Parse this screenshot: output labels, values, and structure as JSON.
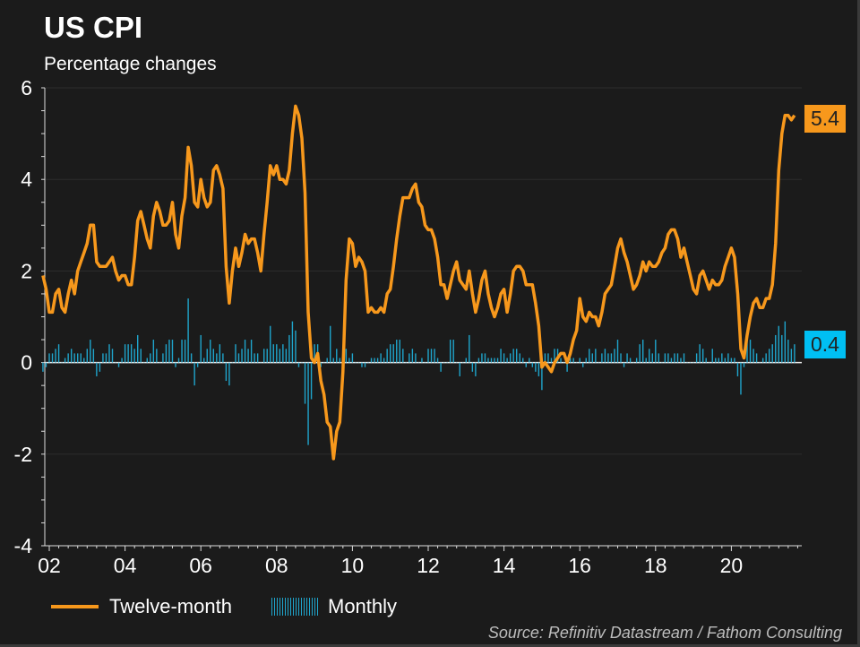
{
  "title": "US CPI",
  "subtitle": "Percentage changes",
  "source": "Source: Refinitiv Datastream / Fathom Consulting",
  "colors": {
    "twelve_month": "#f7981c",
    "monthly": "#1fa5cc",
    "monthly_badge": "#00bff3",
    "background": "#1b1b1b"
  },
  "chart_data": {
    "type": "line+bar",
    "title": "US CPI",
    "subtitle": "Percentage changes",
    "xlabel": "",
    "ylabel": "",
    "ylim": [
      -4,
      6
    ],
    "yticks": [
      "6",
      "4",
      "2",
      "0",
      "-2",
      "-4"
    ],
    "xticks": [
      "02",
      "04",
      "06",
      "08",
      "10",
      "12",
      "14",
      "16",
      "18",
      "20"
    ],
    "grid": true,
    "legend_position": "bottom",
    "start_month": "2001-11",
    "end_month": "2021-09",
    "series": [
      {
        "name": "Twelve-month",
        "type": "line",
        "last_label": "5.4",
        "values": [
          1.9,
          1.6,
          1.1,
          1.1,
          1.5,
          1.6,
          1.2,
          1.1,
          1.5,
          1.8,
          1.5,
          2.0,
          2.2,
          2.4,
          2.6,
          3.0,
          3.0,
          2.2,
          2.1,
          2.1,
          2.1,
          2.2,
          2.3,
          2.0,
          1.8,
          1.9,
          1.9,
          1.7,
          1.7,
          2.3,
          3.1,
          3.3,
          3.0,
          2.7,
          2.5,
          3.2,
          3.5,
          3.3,
          3.0,
          3.0,
          3.1,
          3.5,
          2.8,
          2.5,
          3.2,
          3.6,
          4.7,
          4.3,
          3.5,
          3.4,
          4.0,
          3.6,
          3.4,
          3.5,
          4.2,
          4.3,
          4.1,
          3.8,
          2.1,
          1.3,
          2.0,
          2.5,
          2.1,
          2.4,
          2.8,
          2.6,
          2.7,
          2.7,
          2.4,
          2.0,
          2.8,
          3.5,
          4.3,
          4.1,
          4.3,
          4.0,
          4.0,
          3.9,
          4.2,
          5.0,
          5.6,
          5.4,
          4.9,
          3.7,
          1.1,
          0.1,
          0.0,
          0.2,
          -0.4,
          -0.7,
          -1.3,
          -1.4,
          -2.1,
          -1.5,
          -1.3,
          -0.2,
          1.8,
          2.7,
          2.6,
          2.1,
          2.3,
          2.2,
          2.0,
          1.1,
          1.2,
          1.1,
          1.1,
          1.2,
          1.1,
          1.5,
          1.6,
          2.1,
          2.7,
          3.2,
          3.6,
          3.6,
          3.6,
          3.8,
          3.9,
          3.5,
          3.4,
          3.0,
          2.9,
          2.9,
          2.7,
          2.3,
          1.7,
          1.7,
          1.4,
          1.7,
          2.0,
          2.2,
          1.8,
          1.7,
          1.6,
          2.0,
          1.5,
          1.1,
          1.4,
          1.8,
          2.0,
          1.5,
          1.2,
          1.0,
          1.2,
          1.5,
          1.6,
          1.1,
          1.5,
          2.0,
          2.1,
          2.1,
          2.0,
          1.7,
          1.7,
          1.7,
          1.3,
          0.8,
          -0.1,
          0.0,
          -0.1,
          -0.2,
          0.0,
          0.1,
          0.2,
          0.2,
          0.0,
          0.2,
          0.5,
          0.7,
          1.4,
          1.0,
          0.9,
          1.1,
          1.0,
          1.0,
          0.8,
          1.1,
          1.5,
          1.6,
          1.7,
          2.1,
          2.5,
          2.7,
          2.4,
          2.2,
          1.9,
          1.6,
          1.7,
          1.9,
          2.2,
          2.0,
          2.2,
          2.1,
          2.1,
          2.2,
          2.4,
          2.5,
          2.8,
          2.9,
          2.9,
          2.7,
          2.3,
          2.5,
          2.2,
          1.9,
          1.6,
          1.5,
          1.9,
          2.0,
          1.8,
          1.6,
          1.8,
          1.7,
          1.7,
          1.8,
          2.1,
          2.3,
          2.5,
          2.3,
          1.5,
          0.3,
          0.1,
          0.6,
          1.0,
          1.3,
          1.4,
          1.2,
          1.2,
          1.4,
          1.4,
          1.7,
          2.6,
          4.2,
          5.0,
          5.4,
          5.4,
          5.3,
          5.4
        ]
      },
      {
        "name": "Monthly",
        "type": "bar",
        "last_label": "0.4",
        "values": [
          -0.2,
          -0.1,
          0.2,
          0.2,
          0.3,
          0.4,
          0.0,
          0.1,
          0.2,
          0.3,
          0.2,
          0.2,
          0.2,
          0.1,
          0.3,
          0.5,
          0.3,
          -0.3,
          -0.2,
          0.2,
          0.2,
          0.4,
          0.3,
          0.0,
          -0.1,
          0.1,
          0.4,
          0.4,
          0.4,
          0.3,
          0.6,
          0.3,
          0.0,
          0.1,
          0.2,
          0.5,
          0.3,
          0.0,
          0.2,
          0.4,
          0.5,
          0.5,
          -0.1,
          0.1,
          0.5,
          0.5,
          1.4,
          0.2,
          -0.5,
          -0.1,
          0.6,
          0.1,
          0.3,
          0.5,
          0.3,
          0.2,
          0.4,
          0.2,
          -0.4,
          -0.5,
          0.0,
          0.4,
          0.2,
          0.3,
          0.5,
          0.3,
          0.5,
          0.2,
          0.2,
          0.0,
          0.3,
          0.3,
          0.8,
          0.4,
          0.4,
          0.3,
          0.4,
          0.3,
          0.6,
          0.9,
          0.7,
          -0.1,
          0.0,
          -0.9,
          -1.8,
          -0.8,
          0.4,
          0.4,
          -0.1,
          0.0,
          0.1,
          0.8,
          0.1,
          0.3,
          0.1,
          0.3,
          0.3,
          0.1,
          0.2,
          0.0,
          0.0,
          -0.1,
          -0.1,
          0.0,
          0.1,
          0.1,
          0.1,
          0.2,
          0.1,
          0.3,
          0.4,
          0.4,
          0.5,
          0.5,
          0.3,
          0.0,
          0.2,
          0.3,
          0.2,
          0.0,
          0.1,
          0.0,
          0.3,
          0.3,
          0.3,
          0.1,
          -0.2,
          0.0,
          0.0,
          0.5,
          0.5,
          0.0,
          -0.3,
          0.0,
          0.1,
          0.6,
          -0.2,
          -0.3,
          0.1,
          0.2,
          0.2,
          0.1,
          0.1,
          0.1,
          0.1,
          0.3,
          0.2,
          0.1,
          0.2,
          0.3,
          0.3,
          0.2,
          0.1,
          -0.1,
          0.1,
          -0.1,
          -0.2,
          -0.3,
          -0.6,
          0.2,
          0.2,
          0.1,
          0.3,
          0.3,
          0.1,
          0.0,
          -0.2,
          0.1,
          0.1,
          0.0,
          0.1,
          -0.1,
          0.1,
          0.3,
          0.2,
          0.3,
          0.0,
          0.2,
          0.3,
          0.2,
          0.2,
          0.3,
          0.5,
          0.2,
          -0.1,
          0.2,
          0.1,
          0.0,
          0.1,
          0.4,
          0.5,
          0.1,
          0.3,
          0.2,
          0.5,
          0.2,
          0.0,
          0.2,
          0.2,
          0.1,
          0.2,
          0.2,
          0.1,
          0.2,
          0.0,
          0.0,
          0.0,
          0.2,
          0.4,
          0.3,
          0.1,
          0.0,
          0.3,
          0.1,
          0.1,
          0.2,
          0.1,
          0.2,
          0.1,
          0.1,
          -0.3,
          -0.7,
          -0.1,
          0.5,
          0.5,
          0.3,
          0.2,
          0.0,
          0.1,
          0.2,
          0.3,
          0.4,
          0.6,
          0.8,
          0.6,
          0.9,
          0.5,
          0.3,
          0.4
        ]
      }
    ]
  }
}
